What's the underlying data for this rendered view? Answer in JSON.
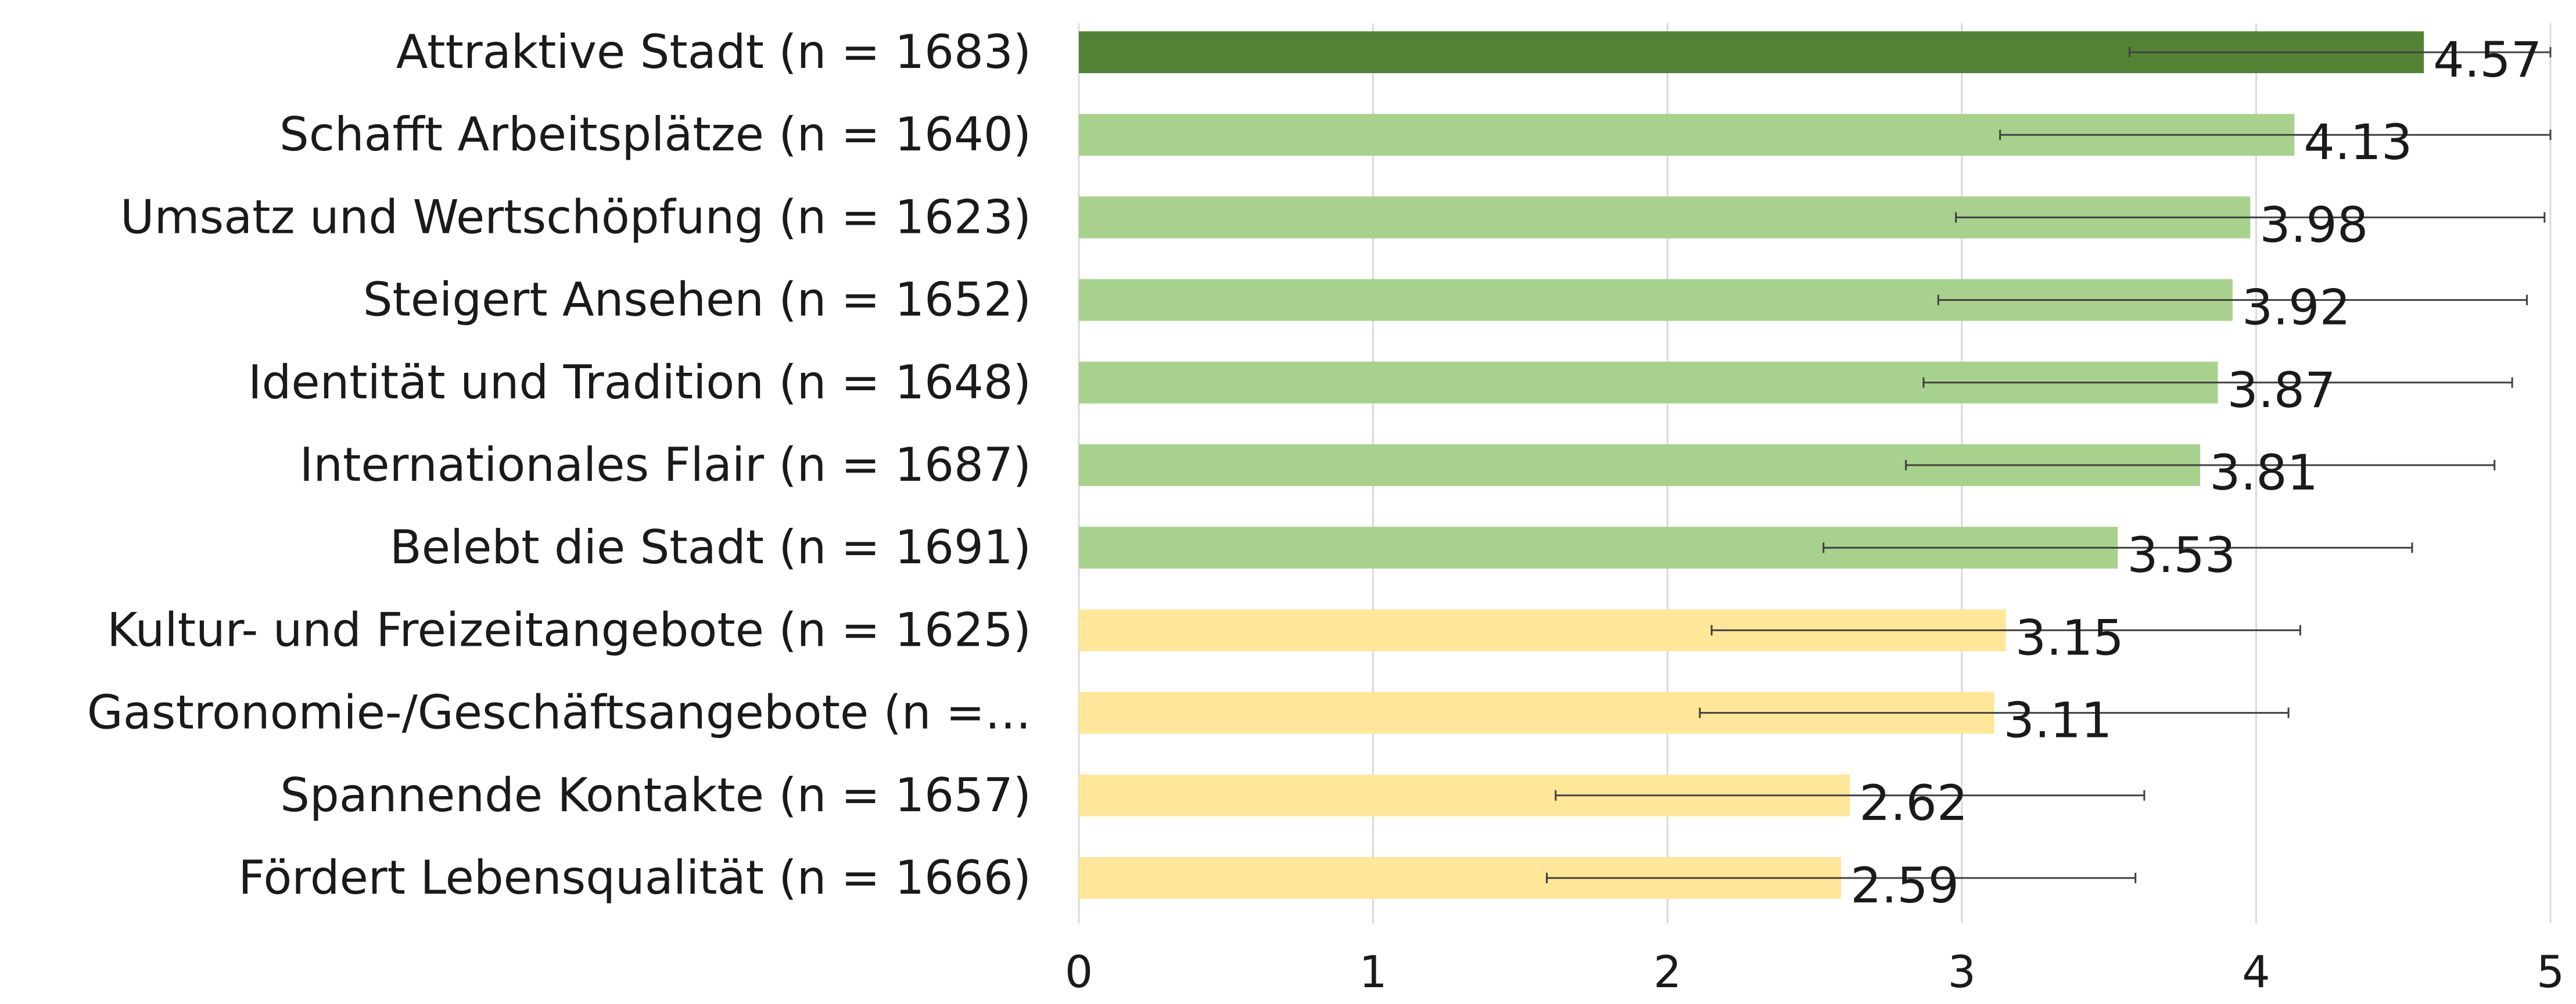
{
  "chart_data": {
    "type": "bar",
    "orientation": "horizontal",
    "categories": [
      "Attraktive Stadt (n = 1683)",
      "Schafft Arbeitsplätze (n = 1640)",
      "Umsatz und Wertschöpfung (n = 1623)",
      "Steigert Ansehen (n = 1652)",
      "Identität und Tradition (n = 1648)",
      "Internationales Flair (n = 1687)",
      "Belebt die Stadt (n = 1691)",
      "Kultur- und Freizeitangebote (n = 1625)",
      "Gastronomie-/Geschäftsangebote (n =…",
      "Spannende Kontakte (n = 1657)",
      "Fördert Lebensqualität (n = 1666)"
    ],
    "values": [
      4.57,
      4.13,
      3.98,
      3.92,
      3.87,
      3.81,
      3.53,
      3.15,
      3.11,
      2.62,
      2.59
    ],
    "value_labels": [
      "4.57",
      "4.13",
      "3.98",
      "3.92",
      "3.87",
      "3.81",
      "3.53",
      "3.15",
      "3.11",
      "2.62",
      "2.59"
    ],
    "error_bars": [
      [
        3.57,
        5.0
      ],
      [
        3.13,
        5.0
      ],
      [
        2.98,
        4.98
      ],
      [
        2.92,
        4.92
      ],
      [
        2.87,
        4.87
      ],
      [
        2.81,
        4.81
      ],
      [
        2.53,
        4.53
      ],
      [
        2.15,
        4.15
      ],
      [
        2.11,
        4.11
      ],
      [
        1.62,
        3.62
      ],
      [
        1.59,
        3.59
      ]
    ],
    "colors": [
      "#548235",
      "#a9d18e",
      "#a9d18e",
      "#a9d18e",
      "#a9d18e",
      "#a9d18e",
      "#a9d18e",
      "#ffe699",
      "#ffe699",
      "#ffe699",
      "#ffe699"
    ],
    "xlim": [
      0,
      5
    ],
    "x_ticks": [
      "0",
      "1",
      "2",
      "3",
      "4",
      "5"
    ],
    "title": "",
    "xlabel": "",
    "ylabel": "",
    "grid": "vertical",
    "legend": "none"
  }
}
